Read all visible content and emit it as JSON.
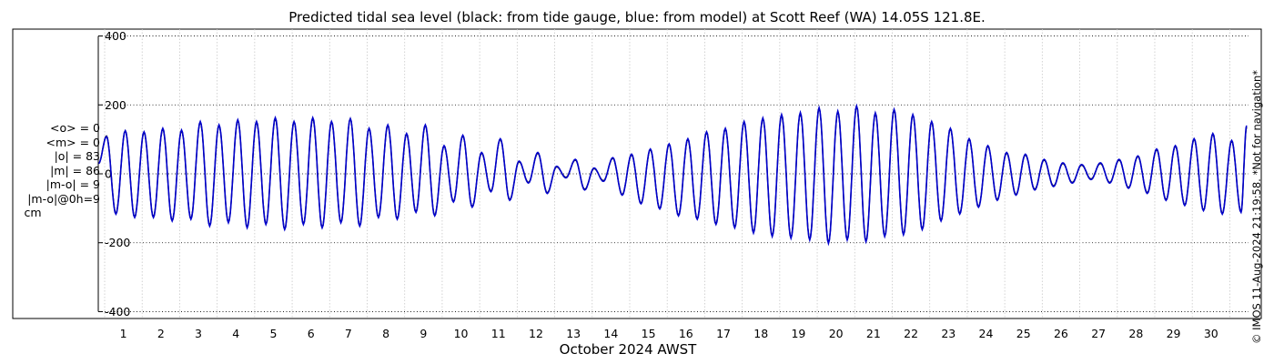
{
  "title": "Predicted tidal sea level (black: from tide gauge, blue: from model) at Scott Reef (WA) 14.05S 121.8E.",
  "stats": [
    "<o> = 0",
    "<m> = 0",
    "|o| = 83",
    "|m| = 86",
    "|m-o| = 9",
    "|m-o|@0h=9"
  ],
  "stats_unit": "cm",
  "side_note": "© IMOS 11-Aug-2024 21:19:58. *Not for navigation*",
  "chart_data": {
    "type": "line",
    "title": "Predicted tidal sea level (black: from tide gauge, blue: from model) at Scott Reef (WA) 14.05S 121.8E.",
    "xlabel": "October 2024 AWST",
    "ylabel": "",
    "xlim": [
      0.33,
      31
    ],
    "ylim": [
      -420,
      420
    ],
    "y_ticks": [
      400,
      200,
      0,
      -200,
      -400
    ],
    "x_ticks": [
      1,
      2,
      3,
      4,
      5,
      6,
      7,
      8,
      9,
      10,
      11,
      12,
      13,
      14,
      15,
      16,
      17,
      18,
      19,
      20,
      21,
      22,
      23,
      24,
      25,
      26,
      27,
      28,
      29,
      30
    ],
    "grid": true,
    "colors": {
      "gauge": "#000000",
      "model": "#0000cc"
    },
    "series": [
      {
        "color_name": "black",
        "peak_days": [
          0.55,
          1.05,
          1.55,
          2.05,
          2.55,
          3.05,
          3.55,
          4.05,
          4.55,
          5.05,
          5.55,
          6.05,
          6.55,
          7.05,
          7.55,
          8.05,
          8.55,
          9.05,
          9.55,
          10.05,
          10.55,
          11.05,
          11.55,
          12.05,
          12.55,
          13.05,
          13.55,
          14.05,
          14.55,
          15.05,
          15.55,
          16.05,
          16.55,
          17.05,
          17.55,
          18.05,
          18.55,
          19.05,
          19.55,
          20.05,
          20.55,
          21.05,
          21.55,
          22.05,
          22.55,
          23.05,
          23.55,
          24.05,
          24.55,
          25.05,
          25.55,
          26.05,
          26.55,
          27.05,
          27.55,
          28.05,
          28.55,
          29.05,
          29.55,
          30.05,
          30.55,
          30.95
        ],
        "peak_values": [
          110,
          125,
          120,
          130,
          125,
          150,
          140,
          155,
          150,
          160,
          150,
          160,
          150,
          160,
          130,
          140,
          115,
          140,
          80,
          110,
          60,
          100,
          35,
          60,
          20,
          40,
          15,
          45,
          55,
          70,
          85,
          100,
          120,
          130,
          150,
          160,
          170,
          175,
          190,
          180,
          195,
          175,
          185,
          170,
          150,
          130,
          100,
          80,
          60,
          55,
          40,
          30,
          25,
          30,
          40,
          50,
          70,
          80,
          100,
          115,
          95,
          135
        ],
        "trough_days": [
          0.8,
          1.3,
          1.8,
          2.3,
          2.8,
          3.3,
          3.8,
          4.3,
          4.8,
          5.3,
          5.8,
          6.3,
          6.8,
          7.3,
          7.8,
          8.3,
          8.8,
          9.3,
          9.8,
          10.3,
          10.8,
          11.3,
          11.8,
          12.3,
          12.8,
          13.3,
          13.8,
          14.3,
          14.8,
          15.3,
          15.8,
          16.3,
          16.8,
          17.3,
          17.8,
          18.3,
          18.8,
          19.3,
          19.8,
          20.3,
          20.8,
          21.3,
          21.8,
          22.3,
          22.8,
          23.3,
          23.8,
          24.3,
          24.8,
          25.3,
          25.8,
          26.3,
          26.8,
          27.3,
          27.8,
          28.3,
          28.8,
          29.3,
          29.8,
          30.3,
          30.8
        ],
        "trough_values": [
          -115,
          -125,
          -125,
          -135,
          -130,
          -150,
          -140,
          -155,
          -145,
          -160,
          -145,
          -155,
          -140,
          -150,
          -125,
          -130,
          -110,
          -120,
          -80,
          -95,
          -50,
          -75,
          -25,
          -55,
          -10,
          -45,
          -20,
          -60,
          -85,
          -100,
          -120,
          -130,
          -145,
          -155,
          -170,
          -180,
          -185,
          -190,
          -200,
          -190,
          -195,
          -180,
          -175,
          -160,
          -135,
          -115,
          -95,
          -75,
          -60,
          -45,
          -35,
          -25,
          -15,
          -25,
          -40,
          -55,
          -75,
          -90,
          -105,
          -115,
          -110
        ]
      },
      {
        "color_name": "blue",
        "peak_days": [
          0.55,
          1.05,
          1.55,
          2.05,
          2.55,
          3.05,
          3.55,
          4.05,
          4.55,
          5.05,
          5.55,
          6.05,
          6.55,
          7.05,
          7.55,
          8.05,
          8.55,
          9.05,
          9.55,
          10.05,
          10.55,
          11.05,
          11.55,
          12.05,
          12.55,
          13.05,
          13.55,
          14.05,
          14.55,
          15.05,
          15.55,
          16.05,
          16.55,
          17.05,
          17.55,
          18.05,
          18.55,
          19.05,
          19.55,
          20.05,
          20.55,
          21.05,
          21.55,
          22.05,
          22.55,
          23.05,
          23.55,
          24.05,
          24.55,
          25.05,
          25.55,
          26.05,
          26.55,
          27.05,
          27.55,
          28.05,
          28.55,
          29.05,
          29.55,
          30.05,
          30.55,
          30.95
        ],
        "peak_values": [
          108,
          125,
          122,
          132,
          127,
          152,
          142,
          157,
          152,
          163,
          152,
          163,
          152,
          160,
          132,
          142,
          117,
          142,
          82,
          112,
          62,
          102,
          37,
          62,
          22,
          42,
          17,
          47,
          57,
          72,
          87,
          102,
          122,
          132,
          152,
          162,
          172,
          178,
          192,
          182,
          197,
          177,
          187,
          172,
          152,
          132,
          102,
          82,
          62,
          57,
          42,
          32,
          27,
          32,
          42,
          52,
          72,
          82,
          102,
          117,
          97,
          140
        ],
        "trough_days": [
          0.8,
          1.3,
          1.8,
          2.3,
          2.8,
          3.3,
          3.8,
          4.3,
          4.8,
          5.3,
          5.8,
          6.3,
          6.8,
          7.3,
          7.8,
          8.3,
          8.8,
          9.3,
          9.8,
          10.3,
          10.8,
          11.3,
          11.8,
          12.3,
          12.8,
          13.3,
          13.8,
          14.3,
          14.8,
          15.3,
          15.8,
          16.3,
          16.8,
          17.3,
          17.8,
          18.3,
          18.8,
          19.3,
          19.8,
          20.3,
          20.8,
          21.3,
          21.8,
          22.3,
          22.8,
          23.3,
          23.8,
          24.3,
          24.8,
          25.3,
          25.8,
          26.3,
          26.8,
          27.3,
          27.8,
          28.3,
          28.8,
          29.3,
          29.8,
          30.3,
          30.8
        ],
        "trough_values": [
          -117,
          -127,
          -127,
          -137,
          -132,
          -152,
          -142,
          -157,
          -147,
          -162,
          -147,
          -157,
          -142,
          -152,
          -127,
          -132,
          -112,
          -122,
          -82,
          -97,
          -52,
          -77,
          -27,
          -57,
          -12,
          -47,
          -22,
          -62,
          -87,
          -102,
          -122,
          -132,
          -147,
          -157,
          -172,
          -182,
          -187,
          -192,
          -202,
          -192,
          -197,
          -182,
          -177,
          -162,
          -137,
          -117,
          -97,
          -77,
          -62,
          -47,
          -37,
          -27,
          -17,
          -27,
          -42,
          -57,
          -77,
          -92,
          -107,
          -117,
          -112
        ]
      }
    ]
  }
}
